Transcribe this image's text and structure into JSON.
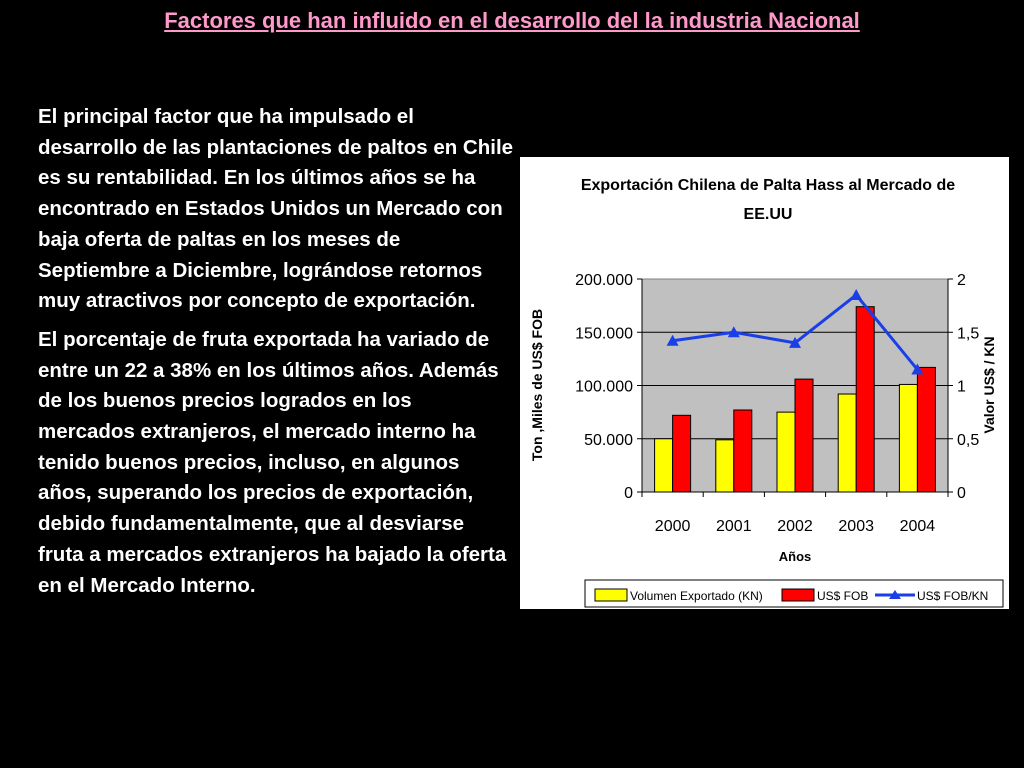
{
  "slide": {
    "title": "Factores que han influido en el desarrollo del  la industria Nacional",
    "paragraphs": [
      "El principal factor que ha impulsado el desarrollo de las plantaciones de paltos en Chile es su rentabilidad. En los últimos años se ha encontrado en Estados Unidos un Mercado con baja oferta de paltas en los meses de Septiembre a Diciembre, lográndose retornos muy atractivos por concepto de exportación.",
      "El porcentaje de fruta exportada ha variado de entre un 22 a 38% en los últimos años. Además de los buenos precios logrados en los mercados extranjeros, el mercado interno ha tenido buenos precios, incluso, en algunos años, superando los precios de exportación, debido fundamentalmente, que al desviarse fruta a mercados extranjeros ha bajado la oferta en el Mercado Interno."
    ]
  },
  "colors": {
    "background": "#000000",
    "title": "#ff99cc",
    "text": "#ffffff",
    "volumen": "#ffff00",
    "fob": "#ff0000",
    "fob_kn": "#1a3fe8",
    "plot_area": "#c0c0c0"
  },
  "chart_data": {
    "type": "bar",
    "title_lines": [
      "Exportación Chilena de Palta Hass al Mercado de",
      "EE.UU"
    ],
    "xlabel": "Años",
    "ylabel_left": "Ton ,Miles de US$ FOB",
    "ylabel_right": "Valor US$ / KN",
    "categories": [
      "2000",
      "2001",
      "2002",
      "2003",
      "2004"
    ],
    "ylim_left": [
      0,
      200000
    ],
    "yticks_left": [
      "0",
      "50.000",
      "100.000",
      "150.000",
      "200.000"
    ],
    "ylim_right": [
      0,
      2
    ],
    "yticks_right": [
      "0",
      "0,5",
      "1",
      "1,5",
      "2"
    ],
    "grid": true,
    "legend_position": "bottom",
    "series": [
      {
        "name": "Volumen Exportado (KN)",
        "kind": "bar",
        "axis": "left",
        "values": [
          50000,
          49000,
          75000,
          92000,
          101000
        ]
      },
      {
        "name": "US$ FOB",
        "kind": "bar",
        "axis": "left",
        "values": [
          72000,
          77000,
          106000,
          174000,
          117000
        ]
      },
      {
        "name": "US$ FOB/KN",
        "kind": "line",
        "axis": "right",
        "values": [
          1.42,
          1.5,
          1.4,
          1.85,
          1.15
        ]
      }
    ]
  }
}
